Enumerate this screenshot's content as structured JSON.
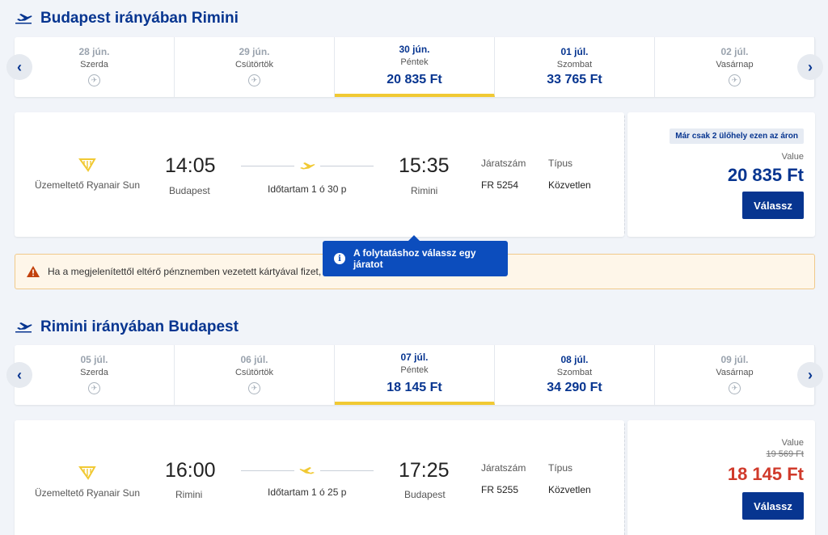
{
  "outbound": {
    "title": "Budapest irányában Rimini",
    "dates": [
      {
        "date": "28 jún.",
        "dow": "Szerda",
        "price": null
      },
      {
        "date": "29 jún.",
        "dow": "Csütörtök",
        "price": null
      },
      {
        "date": "30 jún.",
        "dow": "Péntek",
        "price": "20 835 Ft",
        "selected": true
      },
      {
        "date": "01 júl.",
        "dow": "Szombat",
        "price": "33 765 Ft"
      },
      {
        "date": "02 júl.",
        "dow": "Vasárnap",
        "price": null
      }
    ],
    "flight": {
      "operator": "Üzemeltető Ryanair Sun",
      "dep_time": "14:05",
      "dep_city": "Budapest",
      "duration": "Időtartam 1 ó 30 p",
      "arr_time": "15:35",
      "arr_city": "Rimini",
      "flightno_label": "Járatszám",
      "flightno": "FR 5254",
      "type_label": "Típus",
      "type": "Közvetlen",
      "seats_badge": "Már csak 2 ülőhely ezen az áron",
      "value_label": "Value",
      "price": "20 835 Ft",
      "select_label": "Válassz"
    }
  },
  "warning": {
    "text": "Ha a megjelenítettől eltérő pénznemben vezetett kártyával fizet, a"
  },
  "tooltip": {
    "text": "A folytatáshoz válassz egy járatot"
  },
  "inbound": {
    "title": "Rimini irányában Budapest",
    "dates": [
      {
        "date": "05 júl.",
        "dow": "Szerda",
        "price": null
      },
      {
        "date": "06 júl.",
        "dow": "Csütörtök",
        "price": null
      },
      {
        "date": "07 júl.",
        "dow": "Péntek",
        "price": "18 145 Ft",
        "selected": true
      },
      {
        "date": "08 júl.",
        "dow": "Szombat",
        "price": "34 290 Ft"
      },
      {
        "date": "09 júl.",
        "dow": "Vasárnap",
        "price": null
      }
    ],
    "flight": {
      "operator": "Üzemeltető Ryanair Sun",
      "dep_time": "16:00",
      "dep_city": "Rimini",
      "duration": "Időtartam 1 ó 25 p",
      "arr_time": "17:25",
      "arr_city": "Budapest",
      "flightno_label": "Járatszám",
      "flightno": "FR 5255",
      "type_label": "Típus",
      "type": "Közvetlen",
      "value_label": "Value",
      "old_price": "19 569 Ft",
      "price": "18 145 Ft",
      "select_label": "Válassz"
    }
  },
  "colors": {
    "brand": "#073590",
    "accent_yellow": "#f1c933",
    "sale_red": "#d03a2b",
    "tooltip_blue": "#0c4dbd"
  }
}
